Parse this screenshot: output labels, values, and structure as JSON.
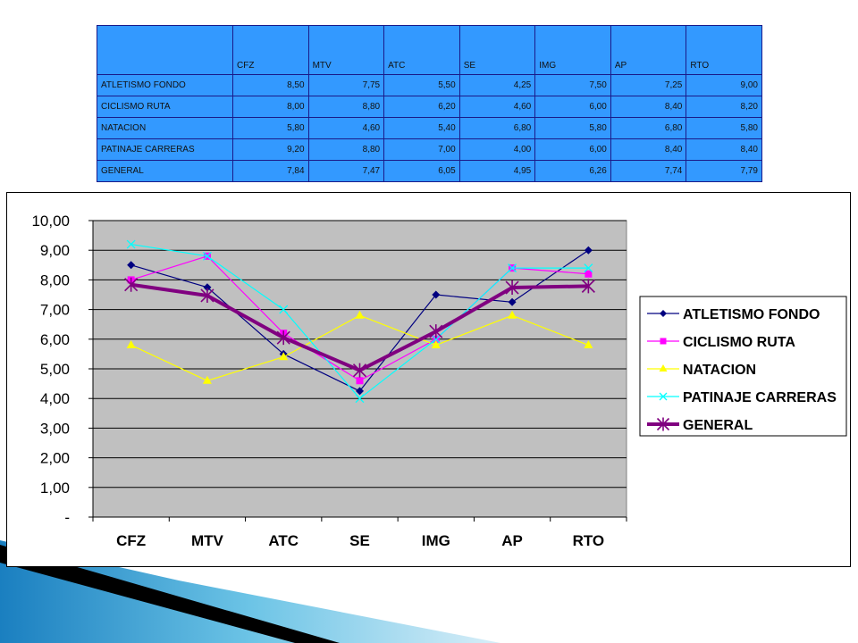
{
  "table": {
    "columns": [
      "",
      "CFZ",
      "MTV",
      "ATC",
      "SE",
      "IMG",
      "AP",
      "RTO"
    ],
    "rows": [
      {
        "label": "ATLETISMO FONDO",
        "cells": [
          "8,50",
          "7,75",
          "5,50",
          "4,25",
          "7,50",
          "7,25",
          "9,00"
        ]
      },
      {
        "label": "CICLISMO RUTA",
        "cells": [
          "8,00",
          "8,80",
          "6,20",
          "4,60",
          "6,00",
          "8,40",
          "8,20"
        ]
      },
      {
        "label": "NATACION",
        "cells": [
          "5,80",
          "4,60",
          "5,40",
          "6,80",
          "5,80",
          "6,80",
          "5,80"
        ]
      },
      {
        "label": "PATINAJE CARRERAS",
        "cells": [
          "9,20",
          "8,80",
          "7,00",
          "4,00",
          "6,00",
          "8,40",
          "8,40"
        ]
      },
      {
        "label": "GENERAL",
        "cells": [
          "7,84",
          "7,47",
          "6,05",
          "4,95",
          "6,26",
          "7,74",
          "7,79"
        ]
      }
    ]
  },
  "chart_data": {
    "type": "line",
    "categories": [
      "CFZ",
      "MTV",
      "ATC",
      "SE",
      "IMG",
      "AP",
      "RTO"
    ],
    "ylim": [
      0,
      10
    ],
    "yticks": [
      {
        "value": 10,
        "label": "10,00"
      },
      {
        "value": 9,
        "label": "9,00"
      },
      {
        "value": 8,
        "label": "8,00"
      },
      {
        "value": 7,
        "label": "7,00"
      },
      {
        "value": 6,
        "label": "6,00"
      },
      {
        "value": 5,
        "label": "5,00"
      },
      {
        "value": 4,
        "label": "4,00"
      },
      {
        "value": 3,
        "label": "3,00"
      },
      {
        "value": 2,
        "label": "2,00"
      },
      {
        "value": 1,
        "label": "1,00"
      },
      {
        "value": 0,
        "label": "-"
      }
    ],
    "grid": true,
    "plot_background": "#c0c0c0",
    "legend_position": "right",
    "series": [
      {
        "name": "ATLETISMO FONDO",
        "color": "#000080",
        "marker": "diamond",
        "width": 1.2,
        "values": [
          8.5,
          7.75,
          5.5,
          4.25,
          7.5,
          7.25,
          9.0
        ]
      },
      {
        "name": "CICLISMO RUTA",
        "color": "#ff00ff",
        "marker": "square",
        "width": 1.2,
        "values": [
          8.0,
          8.8,
          6.2,
          4.6,
          6.0,
          8.4,
          8.2
        ]
      },
      {
        "name": "NATACION",
        "color": "#ffff00",
        "marker": "triangle",
        "width": 1.2,
        "values": [
          5.8,
          4.6,
          5.4,
          6.8,
          5.8,
          6.8,
          5.8
        ]
      },
      {
        "name": "PATINAJE CARRERAS",
        "color": "#00ffff",
        "marker": "x",
        "width": 1.2,
        "values": [
          9.2,
          8.8,
          7.0,
          4.0,
          6.0,
          8.4,
          8.4
        ]
      },
      {
        "name": "GENERAL",
        "color": "#800080",
        "marker": "star",
        "width": 4,
        "values": [
          7.84,
          7.47,
          6.05,
          4.95,
          6.26,
          7.74,
          7.79
        ]
      }
    ]
  }
}
